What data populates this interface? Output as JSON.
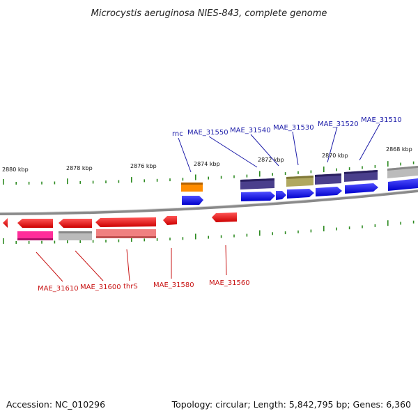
{
  "title": "Microcystis aeruginosa NIES-843, complete genome",
  "footer": {
    "accession": "Accession: NC_010296",
    "summary": "Topology: circular; Length: 5,842,795 bp; Genes: 6,360"
  },
  "ticks": [
    "2880 kbp",
    "2878 kbp",
    "2876 kbp",
    "2874 kbp",
    "2872 kbp",
    "2870 kbp",
    "2868 kbp"
  ],
  "top_labels": [
    "rnc",
    "MAE_31550",
    "MAE_31540",
    "MAE_31530",
    "MAE_31520",
    "MAE_31510"
  ],
  "bottom_labels": [
    "MAE_31610",
    "MAE_31600",
    "thrS",
    "MAE_31580",
    "MAE_31560"
  ],
  "colors": {
    "forward_gene": "#1010ee",
    "reverse_gene": "#ee1010",
    "backbone": "#8a8a8a",
    "tick": "#2e8b22",
    "rnc_cog": "#ff8c00",
    "dark_cog": "#4a3f8c",
    "olive_cog": "#b0a860",
    "gray_cog": "#bbbbbb",
    "pink_cog": "#ff2d9a",
    "salmon_cog": "#f08080"
  }
}
